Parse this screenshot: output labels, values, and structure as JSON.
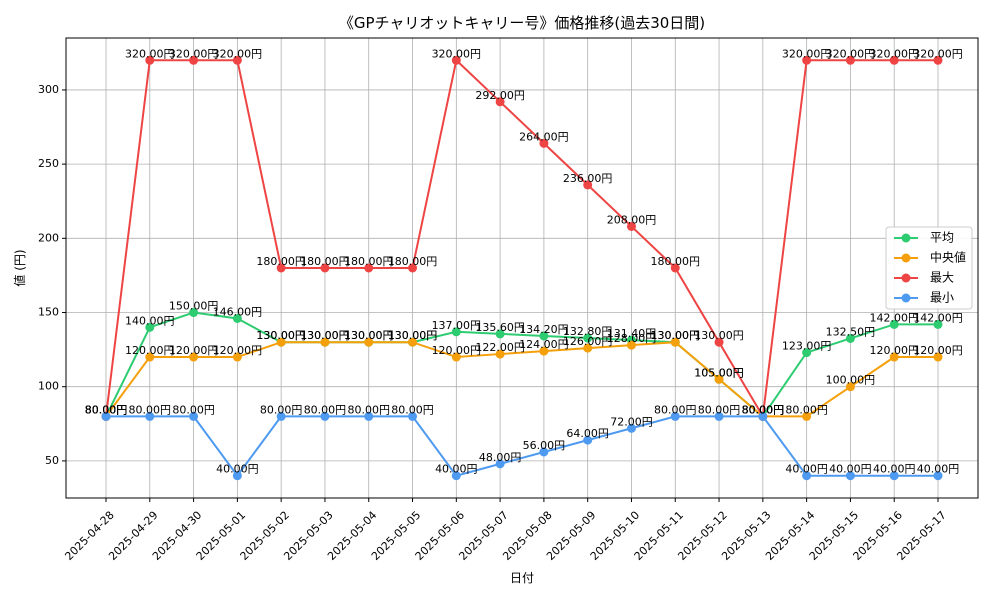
{
  "chart_data": {
    "type": "line",
    "title": "《GPチャリオットキャリー号》価格推移(過去30日間)",
    "xlabel": "日付",
    "ylabel": "値 (円)",
    "categories": [
      "2025-04-28",
      "2025-04-29",
      "2025-04-30",
      "2025-05-01",
      "2025-05-02",
      "2025-05-03",
      "2025-05-04",
      "2025-05-05",
      "2025-05-06",
      "2025-05-07",
      "2025-05-08",
      "2025-05-09",
      "2025-05-10",
      "2025-05-11",
      "2025-05-12",
      "2025-05-13",
      "2025-05-14",
      "2025-05-15",
      "2025-05-16",
      "2025-05-17"
    ],
    "ylim": [
      25,
      335
    ],
    "yticks": [
      50,
      100,
      150,
      200,
      250,
      300
    ],
    "grid": true,
    "legend_position": "right",
    "label_suffix": "円",
    "series": [
      {
        "name": "平均",
        "color": "#2ecc71",
        "values": [
          80,
          140,
          150,
          146,
          130,
          130,
          130,
          130,
          137,
          135.6,
          134.2,
          132.8,
          131.4,
          130,
          105,
          80,
          123,
          132.5,
          142,
          142
        ]
      },
      {
        "name": "中央値",
        "color": "#f5a00a",
        "values": [
          80,
          120,
          120,
          120,
          130,
          130,
          130,
          130,
          120,
          122,
          124,
          126,
          128,
          130,
          105,
          80,
          80,
          100,
          120,
          120
        ]
      },
      {
        "name": "最大",
        "color": "#ef4444",
        "values": [
          80,
          320,
          320,
          320,
          180,
          180,
          180,
          180,
          320,
          292,
          264,
          236,
          208,
          180,
          130,
          80,
          320,
          320,
          320,
          320
        ]
      },
      {
        "name": "最小",
        "color": "#4e9af1",
        "values": [
          80,
          80,
          80,
          40,
          80,
          80,
          80,
          80,
          40,
          48,
          56,
          64,
          72,
          80,
          80,
          80,
          40,
          40,
          40,
          40
        ]
      }
    ]
  }
}
